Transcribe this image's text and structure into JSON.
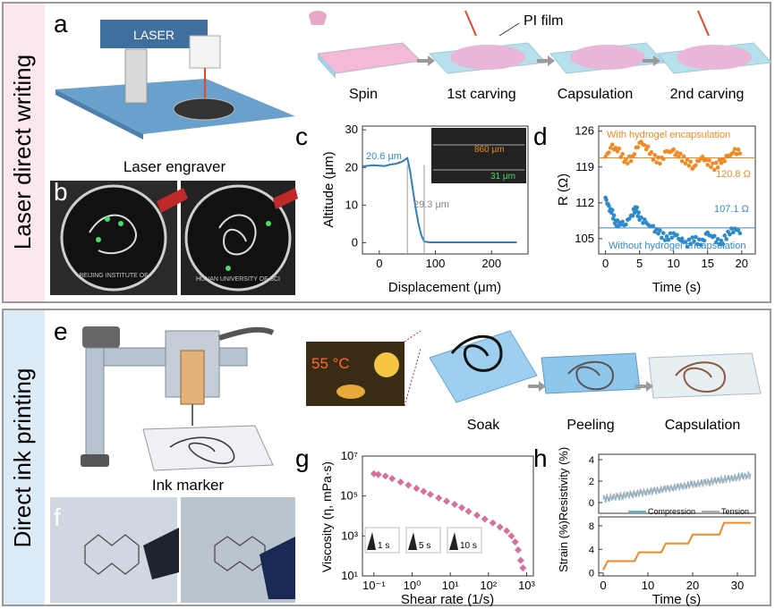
{
  "section_top": {
    "title": "Laser direct writing",
    "panel_a": {
      "letter": "a",
      "caption": "Laser engraver",
      "machine_text": "LASER"
    },
    "panel_b": {
      "letter": "b",
      "logo_left_text": "BEIJING INSTITUTE OF",
      "logo_right_text": "HUNAN UNIVERSITY OF SCI"
    },
    "process": {
      "film_label": "PI film",
      "steps": [
        "Spin",
        "1st carving",
        "Capsulation",
        "2nd carving"
      ]
    },
    "panel_c": {
      "letter": "c",
      "annotations": {
        "height": "20.6 μm",
        "width": "29.3 μm",
        "inset_top": "860 μm",
        "inset_bottom": "31 μm"
      }
    },
    "panel_d": {
      "letter": "d",
      "annotations": {
        "with": "With hydrogel encapsulation",
        "without": "Without hydrogel encapsulation",
        "val_top": "120.8 Ω",
        "val_bottom": "107.1 Ω"
      }
    }
  },
  "section_bottom": {
    "title": "Direct ink printing",
    "panel_e": {
      "letter": "e",
      "caption": "Ink marker",
      "temp": "55 °C"
    },
    "panel_f": {
      "letter": "f"
    },
    "process": {
      "steps": [
        "Soak",
        "Peeling",
        "Capsulation"
      ]
    },
    "panel_g": {
      "letter": "g",
      "insets": [
        "1 s",
        "5 s",
        "10 s"
      ]
    },
    "panel_h": {
      "letter": "h",
      "legend": [
        "Compression",
        "Tension"
      ]
    }
  },
  "chart_data": [
    {
      "id": "c",
      "type": "line",
      "xlabel": "Displacement (μm)",
      "ylabel": "Altitude (μm)",
      "xlim": [
        -30,
        265
      ],
      "ylim": [
        -3,
        31
      ],
      "xticks": [
        0,
        100,
        200
      ],
      "yticks": [
        0,
        10,
        20,
        30
      ],
      "series": [
        {
          "x": [
            -30,
            -10,
            0,
            10,
            20,
            30,
            40,
            50,
            55,
            60,
            65,
            70,
            75,
            80,
            90,
            120,
            160,
            200,
            245
          ],
          "y": [
            20.3,
            20.6,
            20.5,
            20.4,
            20.8,
            21.0,
            21.5,
            22.5,
            19,
            14,
            9,
            5,
            2,
            0.3,
            0.1,
            0.1,
            0.1,
            0.1,
            0.1
          ]
        }
      ]
    },
    {
      "id": "d",
      "type": "scatter",
      "xlabel": "Time (s)",
      "ylabel": "R (Ω)",
      "xlim": [
        -1,
        22
      ],
      "ylim": [
        102,
        127
      ],
      "xticks": [
        0,
        5,
        10,
        15,
        20
      ],
      "yticks": [
        105,
        112,
        119,
        126
      ],
      "reference_lines": [
        120.8,
        107.1
      ],
      "series": [
        {
          "name": "With hydrogel encapsulation",
          "color": "#f08a24",
          "x": [
            0,
            1,
            2,
            3,
            4,
            5,
            6,
            7,
            8,
            9,
            10,
            11,
            12,
            13,
            14,
            15,
            16,
            17,
            18,
            19,
            20
          ],
          "y": [
            121,
            123,
            122,
            120,
            121,
            124,
            123,
            121,
            120,
            122,
            122,
            121,
            120,
            119,
            121,
            120,
            119,
            120,
            121,
            122,
            122
          ]
        },
        {
          "name": "Without hydrogel encapsulation",
          "color": "#2e8bcb",
          "x": [
            0,
            0.5,
            1,
            1.5,
            2,
            3,
            4,
            4.5,
            5,
            6,
            7,
            8,
            9,
            10,
            11,
            12,
            13,
            14,
            15,
            16,
            17,
            18,
            19,
            20
          ],
          "y": [
            113,
            111,
            110,
            108,
            108,
            108,
            110,
            111,
            109,
            108,
            107,
            106,
            105,
            106,
            105,
            104,
            105,
            104,
            106,
            105,
            104,
            106,
            107,
            106
          ]
        }
      ]
    },
    {
      "id": "g",
      "type": "scatter",
      "xlabel": "Shear rate (1/s)",
      "ylabel": "Viscosity (η, mPa·s)",
      "xscale": "log",
      "yscale": "log",
      "xlim": [
        0.05,
        1500
      ],
      "ylim": [
        10,
        10000000
      ],
      "xticks": [
        0.1,
        1,
        10,
        100,
        1000
      ],
      "yticks": [
        10,
        1000,
        100000,
        10000000
      ],
      "series": [
        {
          "color": "#d8709e",
          "x": [
            0.1,
            0.13,
            0.2,
            0.3,
            0.5,
            0.8,
            1.3,
            2,
            3,
            5,
            8,
            13,
            20,
            30,
            50,
            80,
            130,
            200,
            300,
            400,
            500,
            600,
            700,
            800
          ],
          "y": [
            1300000,
            1200000,
            1000000,
            750000,
            500000,
            350000,
            240000,
            170000,
            120000,
            80000,
            55000,
            38000,
            26000,
            17000,
            11000,
            7000,
            4500,
            2800,
            1800,
            1000,
            500,
            200,
            60,
            25
          ]
        }
      ]
    },
    {
      "id": "h_top",
      "type": "line",
      "ylabel": "Resistivity (%)",
      "xlim": [
        -1,
        34
      ],
      "ylim": [
        -1,
        4.5
      ],
      "yticks": [
        0,
        2,
        4
      ],
      "series": [
        {
          "name": "Compression",
          "color": "#62b4e3",
          "x": [
            0,
            33
          ],
          "y": [
            0.3,
            2.6
          ]
        },
        {
          "name": "Tension",
          "color": "#b0b0b0",
          "x": [
            0,
            33
          ],
          "y": [
            0.4,
            2.5
          ]
        }
      ]
    },
    {
      "id": "h_bottom",
      "type": "line",
      "xlabel": "Time (s)",
      "ylabel": "Strain (%)",
      "xlim": [
        -1,
        34
      ],
      "ylim": [
        -0.5,
        9.5
      ],
      "xticks": [
        0,
        10,
        20,
        30
      ],
      "yticks": [
        0,
        4,
        8
      ],
      "series": [
        {
          "color": "#f08a24",
          "x": [
            0,
            1,
            7,
            8,
            13,
            14,
            19,
            20,
            26,
            27,
            33
          ],
          "y": [
            0.5,
            2,
            2,
            3.5,
            3.5,
            5,
            5,
            6.5,
            6.5,
            8.5,
            8.5
          ]
        }
      ]
    }
  ]
}
